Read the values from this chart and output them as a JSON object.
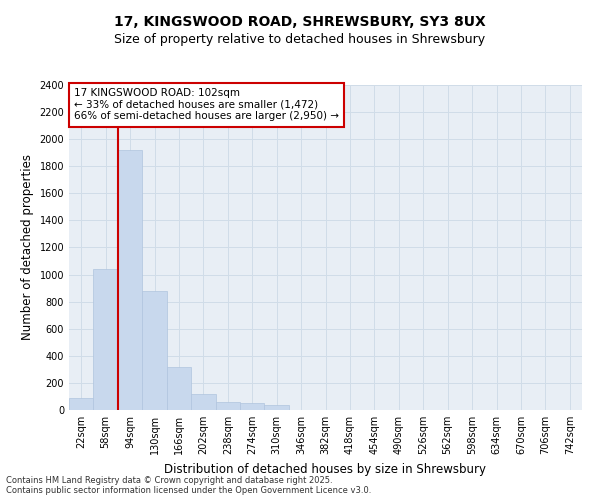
{
  "title_line1": "17, KINGSWOOD ROAD, SHREWSBURY, SY3 8UX",
  "title_line2": "Size of property relative to detached houses in Shrewsbury",
  "xlabel": "Distribution of detached houses by size in Shrewsbury",
  "ylabel": "Number of detached properties",
  "categories": [
    "22sqm",
    "58sqm",
    "94sqm",
    "130sqm",
    "166sqm",
    "202sqm",
    "238sqm",
    "274sqm",
    "310sqm",
    "346sqm",
    "382sqm",
    "418sqm",
    "454sqm",
    "490sqm",
    "526sqm",
    "562sqm",
    "598sqm",
    "634sqm",
    "670sqm",
    "706sqm",
    "742sqm"
  ],
  "values": [
    90,
    1040,
    1920,
    880,
    320,
    120,
    60,
    50,
    35,
    0,
    0,
    0,
    0,
    0,
    0,
    0,
    0,
    0,
    0,
    0,
    0
  ],
  "bar_color": "#c8d8ed",
  "bar_edgecolor": "#b0c4de",
  "vline_color": "#cc0000",
  "vline_pos": 2.0,
  "annotation_text": "17 KINGSWOOD ROAD: 102sqm\n← 33% of detached houses are smaller (1,472)\n66% of semi-detached houses are larger (2,950) →",
  "annotation_box_edgecolor": "#cc0000",
  "annotation_box_facecolor": "#ffffff",
  "ylim": [
    0,
    2400
  ],
  "yticks": [
    0,
    200,
    400,
    600,
    800,
    1000,
    1200,
    1400,
    1600,
    1800,
    2000,
    2200,
    2400
  ],
  "grid_color": "#d0dce8",
  "bg_color": "#e8eef5",
  "footer_line1": "Contains HM Land Registry data © Crown copyright and database right 2025.",
  "footer_line2": "Contains public sector information licensed under the Open Government Licence v3.0.",
  "title_fontsize": 10,
  "subtitle_fontsize": 9,
  "axis_label_fontsize": 8.5,
  "tick_fontsize": 7,
  "annotation_fontsize": 7.5
}
